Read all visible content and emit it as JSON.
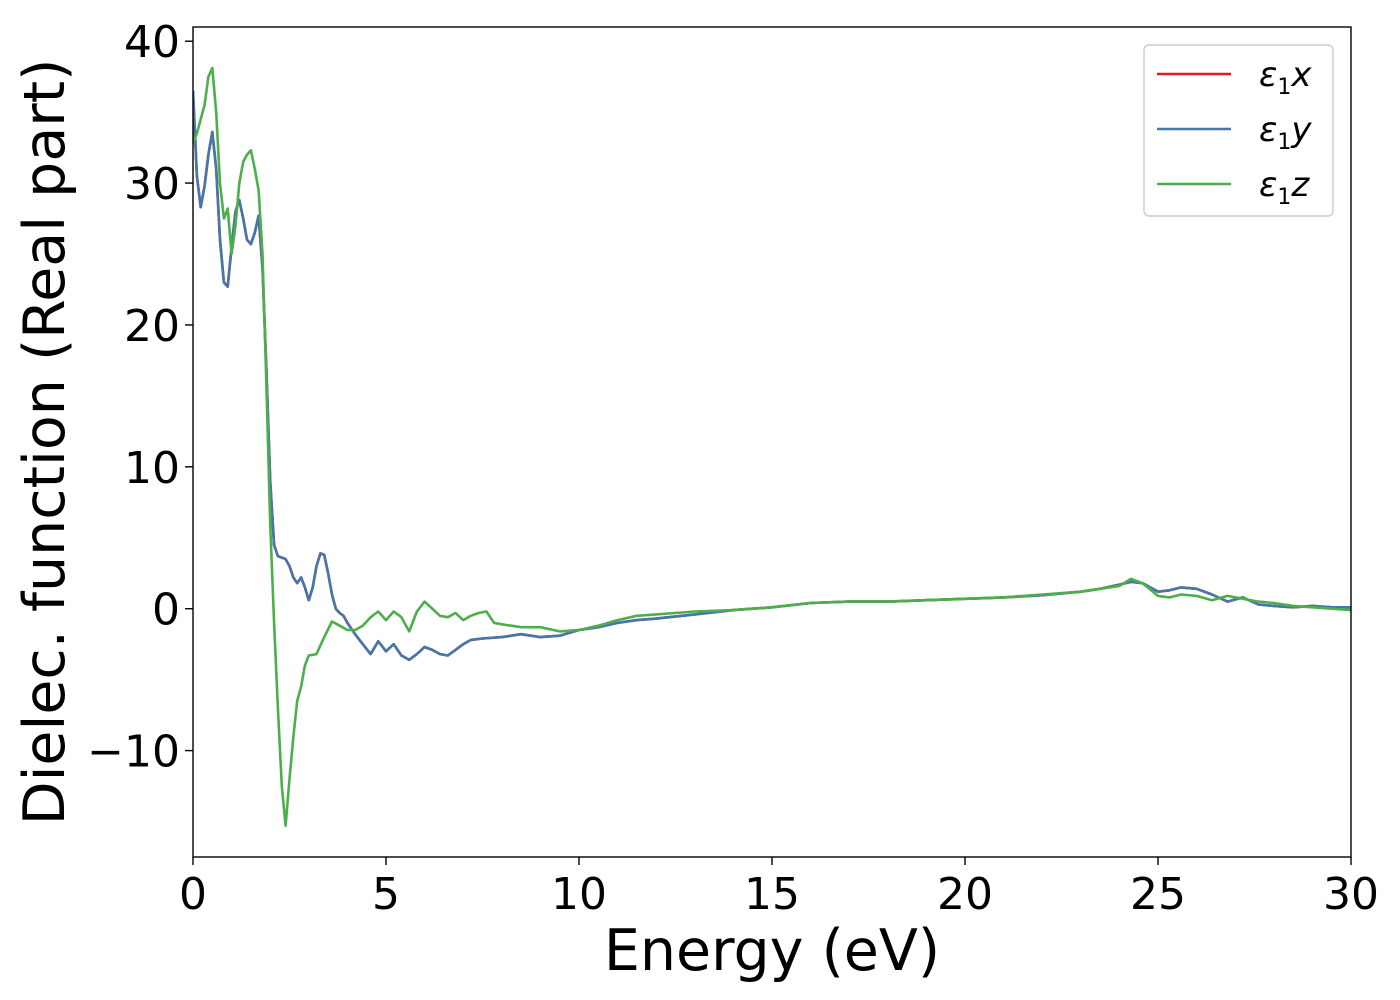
{
  "chart_data": {
    "type": "line",
    "title": "",
    "xlabel": "Energy (eV)",
    "ylabel": "Dielec. function (Real part)",
    "xlim": [
      0,
      30
    ],
    "ylim": [
      -17.5,
      41
    ],
    "xticks": [
      0,
      5,
      10,
      15,
      20,
      25,
      30
    ],
    "xtick_labels": [
      "0",
      "5",
      "10",
      "15",
      "20",
      "25",
      "30"
    ],
    "yticks": [
      -10,
      0,
      10,
      20,
      30,
      40
    ],
    "ytick_labels": [
      "−10",
      "0",
      "10",
      "20",
      "30",
      "40"
    ],
    "grid": false,
    "legend_position": "top-right",
    "series": [
      {
        "name": "ε₁x",
        "legend": {
          "symbol": "ε",
          "sub": "1",
          "var": "x"
        },
        "color": "#e41a1c",
        "x": [
          0,
          0.1,
          0.2,
          0.3,
          0.4,
          0.5,
          0.6,
          0.7,
          0.8,
          0.9,
          1.0,
          1.1,
          1.2,
          1.3,
          1.4,
          1.5,
          1.6,
          1.7,
          1.8,
          1.9,
          2.0,
          2.1,
          2.2,
          2.3,
          2.4,
          2.5,
          2.6,
          2.7,
          2.8,
          2.9,
          3.0,
          3.1,
          3.2,
          3.3,
          3.4,
          3.5,
          3.6,
          3.7,
          3.8,
          3.9,
          4.0,
          4.2,
          4.4,
          4.6,
          4.8,
          5.0,
          5.2,
          5.4,
          5.6,
          5.8,
          6.0,
          6.2,
          6.4,
          6.6,
          6.8,
          7.0,
          7.2,
          7.5,
          8.0,
          8.5,
          9.0,
          9.5,
          10.0,
          10.5,
          11.0,
          11.5,
          12.0,
          13.0,
          14.0,
          15.0,
          16.0,
          17.0,
          18.0,
          19.0,
          20.0,
          21.0,
          22.0,
          23.0,
          23.5,
          24.0,
          24.3,
          24.6,
          25.0,
          25.3,
          25.6,
          26.0,
          26.4,
          26.8,
          27.2,
          27.6,
          28.0,
          28.5,
          29.0,
          29.5,
          30.0
        ],
        "y": [
          36.5,
          30.5,
          28.3,
          29.8,
          32.0,
          33.6,
          31.0,
          26.0,
          23.0,
          22.7,
          25.5,
          28.0,
          28.8,
          27.5,
          26.0,
          25.7,
          26.5,
          27.7,
          24.0,
          17.0,
          9.0,
          4.5,
          3.7,
          3.6,
          3.5,
          3.0,
          2.2,
          1.8,
          2.2,
          1.5,
          0.6,
          1.5,
          3.0,
          3.9,
          3.8,
          2.5,
          1.0,
          0.0,
          -0.3,
          -0.5,
          -1.0,
          -1.8,
          -2.5,
          -3.2,
          -2.3,
          -3.0,
          -2.5,
          -3.3,
          -3.6,
          -3.2,
          -2.7,
          -2.9,
          -3.2,
          -3.3,
          -2.9,
          -2.5,
          -2.2,
          -2.1,
          -2.0,
          -1.8,
          -2.0,
          -1.9,
          -1.5,
          -1.3,
          -1.0,
          -0.8,
          -0.7,
          -0.4,
          -0.1,
          0.1,
          0.4,
          0.5,
          0.5,
          0.6,
          0.7,
          0.8,
          0.95,
          1.2,
          1.4,
          1.7,
          1.9,
          1.8,
          1.2,
          1.3,
          1.5,
          1.4,
          1.0,
          0.5,
          0.8,
          0.3,
          0.2,
          0.1,
          0.2,
          0.1,
          0.1
        ]
      },
      {
        "name": "ε₁y",
        "legend": {
          "symbol": "ε",
          "sub": "1",
          "var": "y"
        },
        "color": "#4477aa",
        "x": [
          0,
          0.1,
          0.2,
          0.3,
          0.4,
          0.5,
          0.6,
          0.7,
          0.8,
          0.9,
          1.0,
          1.1,
          1.2,
          1.3,
          1.4,
          1.5,
          1.6,
          1.7,
          1.8,
          1.9,
          2.0,
          2.1,
          2.2,
          2.3,
          2.4,
          2.5,
          2.6,
          2.7,
          2.8,
          2.9,
          3.0,
          3.1,
          3.2,
          3.3,
          3.4,
          3.5,
          3.6,
          3.7,
          3.8,
          3.9,
          4.0,
          4.2,
          4.4,
          4.6,
          4.8,
          5.0,
          5.2,
          5.4,
          5.6,
          5.8,
          6.0,
          6.2,
          6.4,
          6.6,
          6.8,
          7.0,
          7.2,
          7.5,
          8.0,
          8.5,
          9.0,
          9.5,
          10.0,
          10.5,
          11.0,
          11.5,
          12.0,
          13.0,
          14.0,
          15.0,
          16.0,
          17.0,
          18.0,
          19.0,
          20.0,
          21.0,
          22.0,
          23.0,
          23.5,
          24.0,
          24.3,
          24.6,
          25.0,
          25.3,
          25.6,
          26.0,
          26.4,
          26.8,
          27.2,
          27.6,
          28.0,
          28.5,
          29.0,
          29.5,
          30.0
        ],
        "y": [
          36.5,
          30.5,
          28.3,
          29.8,
          32.0,
          33.6,
          31.0,
          26.0,
          23.0,
          22.7,
          25.5,
          28.0,
          28.8,
          27.5,
          26.0,
          25.7,
          26.5,
          27.7,
          24.0,
          17.0,
          9.0,
          4.5,
          3.7,
          3.6,
          3.5,
          3.0,
          2.2,
          1.8,
          2.2,
          1.5,
          0.6,
          1.5,
          3.0,
          3.9,
          3.8,
          2.5,
          1.0,
          0.0,
          -0.3,
          -0.5,
          -1.0,
          -1.8,
          -2.5,
          -3.2,
          -2.3,
          -3.0,
          -2.5,
          -3.3,
          -3.6,
          -3.2,
          -2.7,
          -2.9,
          -3.2,
          -3.3,
          -2.9,
          -2.5,
          -2.2,
          -2.1,
          -2.0,
          -1.8,
          -2.0,
          -1.9,
          -1.5,
          -1.3,
          -1.0,
          -0.8,
          -0.7,
          -0.4,
          -0.1,
          0.1,
          0.4,
          0.5,
          0.5,
          0.6,
          0.7,
          0.8,
          0.95,
          1.2,
          1.4,
          1.7,
          1.9,
          1.8,
          1.2,
          1.3,
          1.5,
          1.4,
          1.0,
          0.5,
          0.8,
          0.3,
          0.2,
          0.1,
          0.2,
          0.1,
          0.1
        ]
      },
      {
        "name": "ε₁z",
        "legend": {
          "symbol": "ε",
          "sub": "1",
          "var": "z"
        },
        "color": "#4daf4a",
        "x": [
          0,
          0.1,
          0.2,
          0.3,
          0.4,
          0.5,
          0.6,
          0.7,
          0.8,
          0.9,
          1.0,
          1.1,
          1.2,
          1.3,
          1.4,
          1.5,
          1.6,
          1.7,
          1.8,
          1.9,
          2.0,
          2.1,
          2.2,
          2.3,
          2.4,
          2.5,
          2.6,
          2.7,
          2.8,
          2.9,
          3.0,
          3.2,
          3.4,
          3.6,
          3.8,
          4.0,
          4.2,
          4.4,
          4.6,
          4.8,
          5.0,
          5.2,
          5.4,
          5.6,
          5.8,
          6.0,
          6.2,
          6.4,
          6.6,
          6.8,
          7.0,
          7.2,
          7.4,
          7.6,
          7.8,
          8.0,
          8.5,
          9.0,
          9.5,
          10.0,
          10.5,
          11.0,
          11.5,
          12.0,
          13.0,
          14.0,
          15.0,
          16.0,
          17.0,
          18.0,
          19.0,
          20.0,
          21.0,
          22.0,
          23.0,
          23.5,
          24.0,
          24.3,
          24.6,
          25.0,
          25.3,
          25.6,
          26.0,
          26.4,
          26.8,
          27.2,
          27.6,
          28.0,
          28.5,
          29.0,
          29.5,
          30.0
        ],
        "y": [
          32.8,
          33.5,
          34.5,
          35.5,
          37.5,
          38.1,
          35.0,
          30.0,
          27.5,
          28.2,
          25.0,
          27.0,
          30.0,
          31.5,
          32.0,
          32.3,
          31.0,
          29.5,
          25.0,
          16.0,
          6.0,
          -1.0,
          -7.0,
          -12.5,
          -15.3,
          -12.0,
          -9.0,
          -6.5,
          -5.5,
          -4.0,
          -3.3,
          -3.2,
          -2.0,
          -0.9,
          -1.2,
          -1.5,
          -1.5,
          -1.2,
          -0.6,
          -0.2,
          -0.8,
          -0.2,
          -0.6,
          -1.6,
          -0.2,
          0.5,
          0.0,
          -0.5,
          -0.6,
          -0.3,
          -0.8,
          -0.5,
          -0.3,
          -0.2,
          -1.0,
          -1.1,
          -1.3,
          -1.3,
          -1.6,
          -1.5,
          -1.2,
          -0.8,
          -0.5,
          -0.4,
          -0.2,
          -0.1,
          0.1,
          0.4,
          0.5,
          0.5,
          0.6,
          0.7,
          0.8,
          1.0,
          1.2,
          1.4,
          1.6,
          2.1,
          1.8,
          0.9,
          0.8,
          1.0,
          0.9,
          0.6,
          0.9,
          0.7,
          0.5,
          0.4,
          0.2,
          0.1,
          0.0,
          -0.1
        ]
      }
    ]
  }
}
